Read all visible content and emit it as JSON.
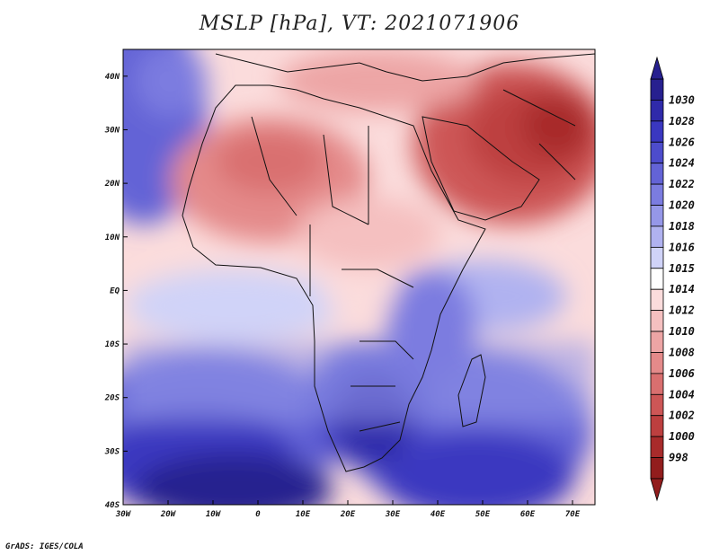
{
  "title": "MSLP [hPa], VT: 2021071906",
  "credit": "GrADS: IGES/COLA",
  "map": {
    "lat_labels": [
      "40N",
      "30N",
      "20N",
      "10N",
      "EQ",
      "10S",
      "20S",
      "30S",
      "40S"
    ],
    "lon_labels": [
      "30W",
      "20W",
      "10W",
      "0",
      "10E",
      "20E",
      "30E",
      "40E",
      "50E",
      "60E",
      "70E"
    ],
    "lon_range": [
      -30,
      75
    ],
    "lat_range": [
      -40,
      45
    ]
  },
  "colorbar": {
    "levels": [
      "1030",
      "1028",
      "1026",
      "1024",
      "1022",
      "1020",
      "1018",
      "1016",
      "1015",
      "1014",
      "1012",
      "1010",
      "1008",
      "1006",
      "1004",
      "1002",
      "1000",
      "998"
    ],
    "colors": [
      "#27208f",
      "#2f2aaa",
      "#3a37c0",
      "#4d4ccc",
      "#6363d6",
      "#7b7ce0",
      "#9597e8",
      "#b0b2f0",
      "#d0d3f8",
      "#ffffff",
      "#fbdcdc",
      "#f5c0c0",
      "#eda5a5",
      "#e48a8a",
      "#d96f6f",
      "#cd5656",
      "#bd3f3f",
      "#a82b2b",
      "#921d1d"
    ]
  }
}
